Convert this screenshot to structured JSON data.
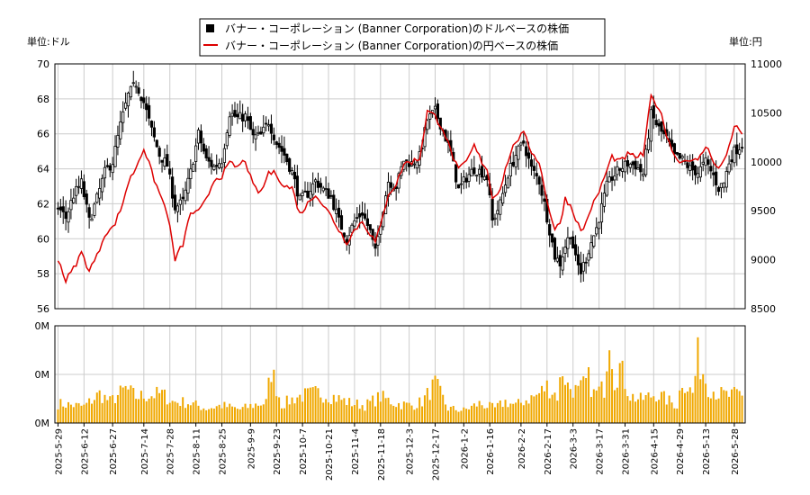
{
  "chart_data": {
    "type": "candlestick",
    "legend": {
      "dollar_series": "バナー・コーポレーション (Banner Corporation)のドルベースの株価",
      "yen_series": "バナー・コーポレーション (Banner Corporation)の円ベースの株価",
      "placement": "top-center"
    },
    "left_unit_label": "単位:ドル",
    "right_unit_label": "単位:円",
    "price_axis_left": {
      "min": 56,
      "max": 70,
      "ticks": [
        56,
        58,
        60,
        62,
        64,
        66,
        68,
        70
      ]
    },
    "price_axis_right": {
      "min": 8500,
      "max": 11000,
      "ticks": [
        8500,
        9000,
        9500,
        10000,
        10500,
        11000
      ]
    },
    "volume_axis": {
      "ticks": [
        "0M",
        "0M",
        "0M"
      ]
    },
    "x_tick_labels": [
      "2025-5-29",
      "2025-6-12",
      "2025-6-27",
      "2025-7-14",
      "2025-7-28",
      "2025-8-11",
      "2025-8-25",
      "2025-9-9",
      "2025-9-23",
      "2025-10-7",
      "2025-10-21",
      "2025-11-4",
      "2025-11-18",
      "2025-12-3",
      "2025-12-17",
      "2026-1-2",
      "2026-1-16",
      "2026-2-2",
      "2026-2-17",
      "2026-3-3",
      "2026-3-17",
      "2026-3-31",
      "2026-4-15",
      "2026-4-29",
      "2026-5-13",
      "2026-5-28"
    ],
    "grid": true,
    "colors": {
      "dollar": "#000000",
      "yen": "#dd0000",
      "volume": "#f0a800",
      "grid": "#cccccc"
    },
    "dollar_close_keypoints": [
      [
        0,
        61.8
      ],
      [
        3,
        61.2
      ],
      [
        6,
        62.5
      ],
      [
        9,
        63.2
      ],
      [
        12,
        61.0
      ],
      [
        15,
        62.3
      ],
      [
        18,
        63.8
      ],
      [
        21,
        64.4
      ],
      [
        24,
        66.5
      ],
      [
        27,
        68.2
      ],
      [
        30,
        68.9
      ],
      [
        33,
        67.8
      ],
      [
        36,
        66.2
      ],
      [
        39,
        64.8
      ],
      [
        42,
        64.2
      ],
      [
        45,
        61.8
      ],
      [
        48,
        62.1
      ],
      [
        51,
        63.8
      ],
      [
        54,
        66.0
      ],
      [
        57,
        64.5
      ],
      [
        60,
        64.1
      ],
      [
        63,
        64.5
      ],
      [
        66,
        67.2
      ],
      [
        69,
        66.9
      ],
      [
        72,
        67.0
      ],
      [
        75,
        65.8
      ],
      [
        78,
        65.9
      ],
      [
        81,
        66.7
      ],
      [
        84,
        65.5
      ],
      [
        87,
        64.8
      ],
      [
        90,
        63.8
      ],
      [
        93,
        62.2
      ],
      [
        96,
        62.6
      ],
      [
        99,
        63.3
      ],
      [
        102,
        62.8
      ],
      [
        105,
        62.4
      ],
      [
        108,
        61.0
      ],
      [
        111,
        60.0
      ],
      [
        114,
        61.0
      ],
      [
        117,
        61.5
      ],
      [
        120,
        60.4
      ],
      [
        122,
        59.2
      ],
      [
        124,
        61.0
      ],
      [
        127,
        63.3
      ],
      [
        130,
        63.0
      ],
      [
        133,
        64.5
      ],
      [
        136,
        64.3
      ],
      [
        139,
        64.7
      ],
      [
        142,
        66.8
      ],
      [
        145,
        67.3
      ],
      [
        148,
        66.2
      ],
      [
        151,
        64.9
      ],
      [
        154,
        62.8
      ],
      [
        157,
        63.5
      ],
      [
        160,
        64.0
      ],
      [
        163,
        63.8
      ],
      [
        165,
        63.5
      ],
      [
        167,
        61.0
      ],
      [
        170,
        62.0
      ],
      [
        173,
        63.7
      ],
      [
        176,
        64.8
      ],
      [
        179,
        65.5
      ],
      [
        182,
        64.0
      ],
      [
        185,
        63.3
      ],
      [
        187,
        62.0
      ],
      [
        189,
        60.5
      ],
      [
        191,
        59.0
      ],
      [
        193,
        58.6
      ],
      [
        195,
        59.6
      ],
      [
        197,
        60.3
      ],
      [
        199,
        58.8
      ],
      [
        201,
        58.1
      ],
      [
        203,
        58.9
      ],
      [
        205,
        59.8
      ],
      [
        207,
        60.6
      ],
      [
        209,
        61.8
      ],
      [
        211,
        63.0
      ],
      [
        213,
        63.5
      ],
      [
        216,
        64.0
      ],
      [
        219,
        64.3
      ],
      [
        222,
        64.2
      ],
      [
        225,
        63.7
      ],
      [
        228,
        67.1
      ],
      [
        231,
        66.3
      ],
      [
        234,
        65.7
      ],
      [
        237,
        64.7
      ],
      [
        240,
        64.5
      ],
      [
        243,
        64.0
      ],
      [
        246,
        63.8
      ],
      [
        249,
        64.4
      ],
      [
        252,
        63.6
      ],
      [
        254,
        62.9
      ],
      [
        256,
        63.2
      ],
      [
        258,
        64.4
      ],
      [
        260,
        65.0
      ],
      [
        263,
        65.4
      ]
    ],
    "yen_close_keypoints": [
      [
        0,
        58.9
      ],
      [
        3,
        57.6
      ],
      [
        6,
        58.3
      ],
      [
        9,
        59.2
      ],
      [
        12,
        58.2
      ],
      [
        15,
        59.0
      ],
      [
        18,
        60.3
      ],
      [
        21,
        60.6
      ],
      [
        24,
        61.6
      ],
      [
        27,
        63.2
      ],
      [
        30,
        64.1
      ],
      [
        33,
        65.2
      ],
      [
        36,
        63.8
      ],
      [
        39,
        62.6
      ],
      [
        42,
        61.5
      ],
      [
        45,
        58.8
      ],
      [
        48,
        59.7
      ],
      [
        51,
        61.5
      ],
      [
        54,
        61.5
      ],
      [
        57,
        62.2
      ],
      [
        60,
        63.4
      ],
      [
        63,
        63.6
      ],
      [
        66,
        64.3
      ],
      [
        69,
        64.1
      ],
      [
        72,
        64.5
      ],
      [
        75,
        63.0
      ],
      [
        78,
        62.6
      ],
      [
        81,
        63.8
      ],
      [
        84,
        63.7
      ],
      [
        87,
        63.0
      ],
      [
        90,
        62.9
      ],
      [
        93,
        61.4
      ],
      [
        96,
        62.0
      ],
      [
        99,
        62.6
      ],
      [
        102,
        61.9
      ],
      [
        105,
        61.3
      ],
      [
        108,
        60.5
      ],
      [
        111,
        59.8
      ],
      [
        114,
        60.5
      ],
      [
        117,
        61.0
      ],
      [
        120,
        60.3
      ],
      [
        122,
        59.8
      ],
      [
        124,
        60.7
      ],
      [
        127,
        62.6
      ],
      [
        130,
        63.1
      ],
      [
        133,
        64.3
      ],
      [
        136,
        64.4
      ],
      [
        139,
        64.6
      ],
      [
        142,
        67.3
      ],
      [
        145,
        67.0
      ],
      [
        148,
        66.3
      ],
      [
        151,
        65.0
      ],
      [
        154,
        63.9
      ],
      [
        157,
        64.4
      ],
      [
        160,
        65.3
      ],
      [
        163,
        64.4
      ],
      [
        165,
        64.0
      ],
      [
        167,
        62.3
      ],
      [
        170,
        62.9
      ],
      [
        173,
        64.5
      ],
      [
        176,
        65.6
      ],
      [
        179,
        66.0
      ],
      [
        182,
        65.0
      ],
      [
        185,
        64.4
      ],
      [
        187,
        62.9
      ],
      [
        189,
        61.6
      ],
      [
        191,
        60.5
      ],
      [
        193,
        60.9
      ],
      [
        195,
        62.3
      ],
      [
        197,
        61.9
      ],
      [
        199,
        61.2
      ],
      [
        201,
        60.4
      ],
      [
        203,
        60.9
      ],
      [
        205,
        61.8
      ],
      [
        207,
        62.3
      ],
      [
        209,
        63.1
      ],
      [
        211,
        63.9
      ],
      [
        213,
        64.7
      ],
      [
        216,
        64.4
      ],
      [
        219,
        64.8
      ],
      [
        222,
        64.7
      ],
      [
        225,
        64.8
      ],
      [
        228,
        68.1
      ],
      [
        231,
        67.5
      ],
      [
        234,
        66.0
      ],
      [
        237,
        64.7
      ],
      [
        240,
        64.4
      ],
      [
        243,
        64.6
      ],
      [
        246,
        64.4
      ],
      [
        249,
        65.3
      ],
      [
        252,
        64.5
      ],
      [
        254,
        64.0
      ],
      [
        256,
        64.4
      ],
      [
        258,
        65.3
      ],
      [
        260,
        66.5
      ],
      [
        263,
        66.0
      ]
    ],
    "volume_keypoints": [
      [
        0,
        0.2
      ],
      [
        10,
        0.17
      ],
      [
        16,
        0.3
      ],
      [
        20,
        0.22
      ],
      [
        26,
        0.35
      ],
      [
        30,
        0.27
      ],
      [
        40,
        0.3
      ],
      [
        44,
        0.22
      ],
      [
        50,
        0.21
      ],
      [
        57,
        0.15
      ],
      [
        63,
        0.18
      ],
      [
        70,
        0.14
      ],
      [
        76,
        0.19
      ],
      [
        80,
        0.21
      ],
      [
        82,
        0.55
      ],
      [
        86,
        0.19
      ],
      [
        92,
        0.27
      ],
      [
        100,
        0.31
      ],
      [
        106,
        0.27
      ],
      [
        112,
        0.21
      ],
      [
        118,
        0.18
      ],
      [
        124,
        0.27
      ],
      [
        130,
        0.2
      ],
      [
        136,
        0.18
      ],
      [
        140,
        0.22
      ],
      [
        145,
        0.4
      ],
      [
        150,
        0.15
      ],
      [
        156,
        0.13
      ],
      [
        162,
        0.2
      ],
      [
        168,
        0.15
      ],
      [
        172,
        0.22
      ],
      [
        176,
        0.18
      ],
      [
        180,
        0.24
      ],
      [
        184,
        0.28
      ],
      [
        188,
        0.38
      ],
      [
        192,
        0.28
      ],
      [
        194,
        0.55
      ],
      [
        196,
        0.38
      ],
      [
        200,
        0.32
      ],
      [
        204,
        0.45
      ],
      [
        206,
        0.3
      ],
      [
        210,
        0.36
      ],
      [
        212,
        1.0
      ],
      [
        214,
        0.45
      ],
      [
        216,
        0.58
      ],
      [
        220,
        0.28
      ],
      [
        224,
        0.24
      ],
      [
        230,
        0.3
      ],
      [
        234,
        0.24
      ],
      [
        238,
        0.18
      ],
      [
        240,
        0.45
      ],
      [
        244,
        0.3
      ],
      [
        246,
        0.68
      ],
      [
        250,
        0.38
      ],
      [
        254,
        0.3
      ],
      [
        258,
        0.28
      ],
      [
        262,
        0.3
      ],
      [
        263,
        0.27
      ]
    ]
  }
}
